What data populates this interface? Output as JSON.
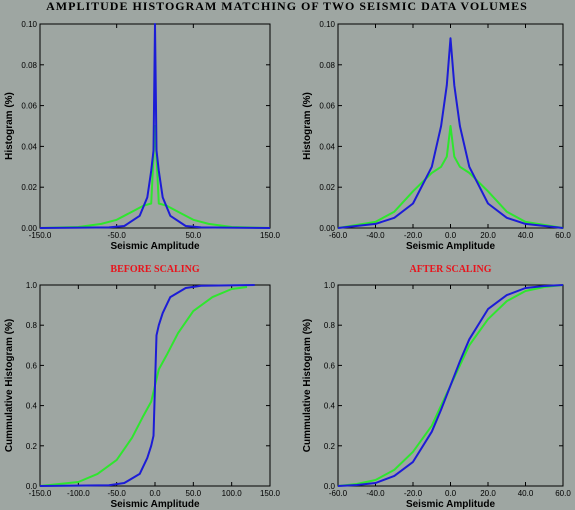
{
  "title": "AMPLITUDE HISTOGRAM MATCHING OF TWO SEISMIC DATA VOLUMES",
  "colors": {
    "background": "#9ea6a2",
    "green": "#2ee62e",
    "blue": "#1c1cd6"
  },
  "chart_data": [
    {
      "type": "line",
      "subtitle": "",
      "xlabel": "Seismic Amplitude",
      "ylabel": "Histogram (%)",
      "xlim": [
        -150,
        150
      ],
      "ylim": [
        0,
        0.1
      ],
      "xticks": [
        "-150.0",
        "-50.0",
        "50.0",
        "150.0"
      ],
      "yticks": [
        "0.00",
        "0.02",
        "0.04",
        "0.06",
        "0.08",
        "0.10"
      ],
      "series": [
        {
          "name": "",
          "color": "green",
          "x": [
            -150,
            -100,
            -70,
            -50,
            -30,
            -15,
            -5,
            0,
            5,
            15,
            30,
            50,
            70,
            100,
            150
          ],
          "y": [
            0,
            0.0005,
            0.002,
            0.004,
            0.008,
            0.011,
            0.012,
            0.05,
            0.012,
            0.011,
            0.008,
            0.004,
            0.002,
            0.0005,
            0
          ]
        },
        {
          "name": "",
          "color": "blue",
          "x": [
            -150,
            -60,
            -40,
            -20,
            -10,
            -5,
            -2,
            0,
            2,
            5,
            10,
            20,
            40,
            60,
            150
          ],
          "y": [
            0,
            0.0003,
            0.001,
            0.006,
            0.015,
            0.028,
            0.038,
            0.1,
            0.038,
            0.028,
            0.015,
            0.006,
            0.001,
            0.0003,
            0
          ]
        }
      ]
    },
    {
      "type": "line",
      "subtitle": "",
      "xlabel": "Seismic Amplitude",
      "ylabel": "Histogram (%)",
      "xlim": [
        -60,
        60
      ],
      "ylim": [
        0,
        0.1
      ],
      "xticks": [
        "-60.0",
        "-40.0",
        "-20.0",
        "0.0",
        "20.0",
        "40.0",
        "60.0"
      ],
      "yticks": [
        "0.00",
        "0.02",
        "0.04",
        "0.06",
        "0.08",
        "0.10"
      ],
      "series": [
        {
          "name": "",
          "color": "green",
          "x": [
            -60,
            -40,
            -30,
            -20,
            -10,
            -5,
            -2,
            0,
            2,
            5,
            10,
            20,
            30,
            40,
            60
          ],
          "y": [
            0,
            0.003,
            0.008,
            0.018,
            0.027,
            0.03,
            0.035,
            0.05,
            0.035,
            0.03,
            0.027,
            0.018,
            0.008,
            0.003,
            0
          ]
        },
        {
          "name": "",
          "color": "blue",
          "x": [
            -60,
            -40,
            -30,
            -20,
            -10,
            -5,
            -2,
            0,
            2,
            5,
            10,
            20,
            30,
            40,
            60
          ],
          "y": [
            0,
            0.002,
            0.005,
            0.012,
            0.03,
            0.05,
            0.07,
            0.093,
            0.07,
            0.05,
            0.03,
            0.012,
            0.005,
            0.002,
            0
          ]
        }
      ]
    },
    {
      "type": "line",
      "subtitle": "BEFORE SCALING",
      "xlabel": "Seismic Amplitude",
      "ylabel": "Cummulative Histogram (%)",
      "xlim": [
        -150,
        150
      ],
      "ylim": [
        0,
        1.0
      ],
      "xticks": [
        "-150.0",
        "-100.0",
        "-50.0",
        "0.0",
        "50.0",
        "100.0",
        "150.0"
      ],
      "yticks": [
        "0.0",
        "0.2",
        "0.4",
        "0.6",
        "0.8",
        "1.0"
      ],
      "series": [
        {
          "name": "",
          "color": "green",
          "x": [
            -150,
            -100,
            -75,
            -50,
            -30,
            -15,
            -5,
            0,
            5,
            15,
            30,
            50,
            75,
            100,
            120
          ],
          "y": [
            0,
            0.02,
            0.06,
            0.13,
            0.24,
            0.35,
            0.42,
            0.5,
            0.58,
            0.65,
            0.76,
            0.87,
            0.94,
            0.98,
            0.99
          ]
        },
        {
          "name": "",
          "color": "blue",
          "x": [
            -150,
            -60,
            -40,
            -20,
            -10,
            -5,
            -2,
            0,
            2,
            5,
            10,
            20,
            40,
            60,
            130
          ],
          "y": [
            0,
            0.004,
            0.015,
            0.06,
            0.14,
            0.2,
            0.25,
            0.5,
            0.75,
            0.8,
            0.86,
            0.94,
            0.985,
            0.996,
            1.0
          ]
        }
      ]
    },
    {
      "type": "line",
      "subtitle": "AFTER SCALING",
      "xlabel": "Seismic Amplitude",
      "ylabel": "Cummulative Histogram (%)",
      "xlim": [
        -60,
        60
      ],
      "ylim": [
        0,
        1.0
      ],
      "xticks": [
        "-60.0",
        "-40.0",
        "-20.0",
        "0.0",
        "20.0",
        "40.0",
        "60.0"
      ],
      "yticks": [
        "0.0",
        "0.2",
        "0.4",
        "0.6",
        "0.8",
        "1.0"
      ],
      "series": [
        {
          "name": "",
          "color": "green",
          "x": [
            -60,
            -50,
            -40,
            -30,
            -20,
            -10,
            -5,
            0,
            5,
            10,
            20,
            30,
            40,
            50,
            60
          ],
          "y": [
            0,
            0.01,
            0.03,
            0.08,
            0.17,
            0.3,
            0.4,
            0.5,
            0.6,
            0.7,
            0.83,
            0.92,
            0.97,
            0.99,
            1.0
          ]
        },
        {
          "name": "",
          "color": "blue",
          "x": [
            -60,
            -50,
            -40,
            -30,
            -20,
            -10,
            -5,
            0,
            5,
            10,
            20,
            30,
            40,
            50,
            60
          ],
          "y": [
            0,
            0.005,
            0.015,
            0.05,
            0.12,
            0.27,
            0.38,
            0.5,
            0.62,
            0.73,
            0.88,
            0.95,
            0.985,
            0.995,
            1.0
          ]
        }
      ]
    }
  ]
}
